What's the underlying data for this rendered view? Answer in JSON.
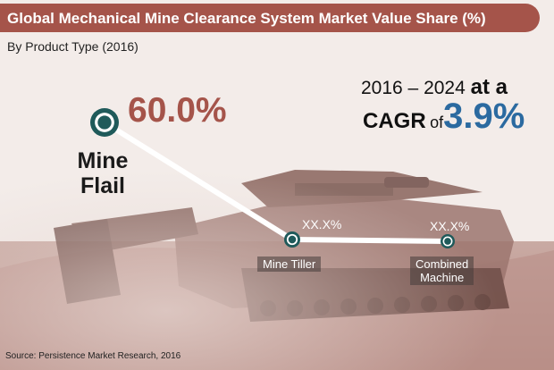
{
  "title": "Global Mechanical Mine Clearance System Market Value Share (%)",
  "subtitle": "By Product Type (2016)",
  "cagr": {
    "range": "2016 – 2024",
    "at_a": "at a",
    "label": "CAGR",
    "of": "of",
    "value": "3.9%"
  },
  "source": "Source: Persistence Market Research, 2016",
  "colors": {
    "accent": "#a5544a",
    "cagr_blue": "#2b6aa0",
    "node": "#1f5a5a"
  },
  "chart_data": {
    "type": "line",
    "categories": [
      "Mine Flail",
      "Mine Tiller",
      "Combined Machine"
    ],
    "values": [
      60.0,
      null,
      null
    ],
    "value_labels": [
      "60.0%",
      "XX.X%",
      "XX.X%"
    ],
    "category_labels": [
      "Mine\nFlail",
      "Mine Tiller",
      "Combined\nMachine"
    ]
  }
}
